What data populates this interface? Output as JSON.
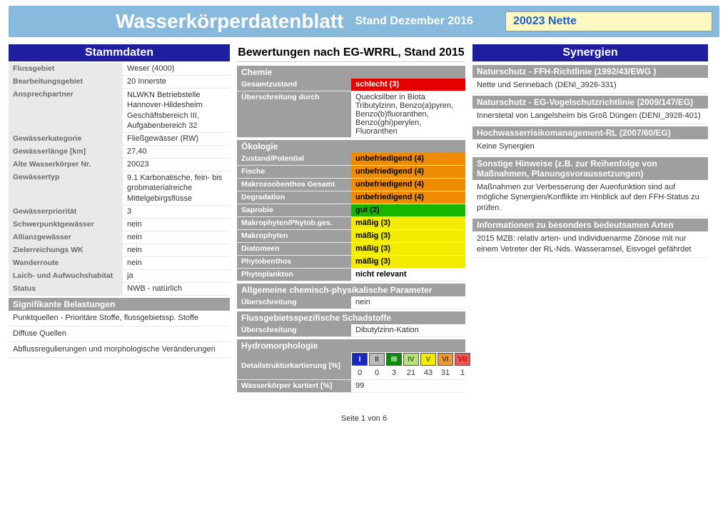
{
  "banner": {
    "bg": "#87badd",
    "title": "Wasserkörperdatenblatt",
    "subtitle": "Stand Dezember 2016",
    "code": "20023 Nette",
    "code_bg": "#fdf7c2",
    "code_color": "#1e60c9"
  },
  "col1": {
    "heading": "Stammdaten",
    "rows": [
      {
        "k": "Flussgebiet",
        "v": "Weser (4000)"
      },
      {
        "k": "Bearbeitungsgebiet",
        "v": "20 Innerste"
      },
      {
        "k": "Ansprechpartner",
        "v": "NLWKN Betriebstelle Hannover-Hildesheim Geschäftsbereich III, Aufgabenbereich 32"
      },
      {
        "k": "Gewässerkategorie",
        "v": "Fließgewässer (RW)"
      },
      {
        "k": "Gewässerlänge [km]",
        "v": "27,40"
      },
      {
        "k": "Alte Wasserkörper Nr.",
        "v": "20023"
      },
      {
        "k": "Gewässertyp",
        "v": "9.1 Karbonatische, fein- bis grobmaterialreiche Mittelgebirgsflüsse"
      },
      {
        "k": "Gewässerpriorität",
        "v": "3"
      },
      {
        "k": "Schwerpunktgewässer",
        "v": "nein"
      },
      {
        "k": "Allianzgewässer",
        "v": "nein"
      },
      {
        "k": "Zielerreichungs WK",
        "v": "nein"
      },
      {
        "k": "Wanderroute",
        "v": "nein"
      },
      {
        "k": "Laich- und Aufwuchshabitat",
        "v": "ja"
      },
      {
        "k": "Status",
        "v": "NWB - natürlich"
      }
    ],
    "belastungen_head": "Signifikante Belastungen",
    "belastungen": [
      "Punktquellen - Prioritäre Stoffe, flussgebietssp. Stoffe",
      "Diffuse Quellen",
      "Abflussregulierungen und morphologische Veränderungen"
    ]
  },
  "col2": {
    "heading": "Bewertungen nach EG-WRRL, Stand 2015",
    "chemie_head": "Chemie",
    "gesamt": {
      "k": "Gesamtzustand",
      "v": "schlecht (3)",
      "bg": "#e60000",
      "fg": "#ffffff"
    },
    "uebers": {
      "k": "Überschreitung durch",
      "v": "Quecksilber in Biota Tributylzinn, Benzo(a)pyren, Benzo(b)fluoranthen, Benzo(ghi)perylen, Fluoranthen"
    },
    "oekologie_head": "Ökologie",
    "oek_rows": [
      {
        "k": "Zustand/Potential",
        "v": "unbefriedigend (4)",
        "bg": "#ee8b00",
        "fg": "#000"
      },
      {
        "k": "Fische",
        "v": "unbefriedigend (4)",
        "bg": "#ee8b00",
        "fg": "#000"
      },
      {
        "k": "Makrozoobenthos Gesamt",
        "v": "unbefriedigend (4)",
        "bg": "#ee8b00",
        "fg": "#000"
      },
      {
        "k": "Degradation",
        "v": "unbefriedigend (4)",
        "bg": "#ee8b00",
        "fg": "#000"
      },
      {
        "k": "Saprobie",
        "v": "gut (2)",
        "bg": "#18b500",
        "fg": "#000"
      },
      {
        "k": "Makrophyten/Phytob.ges.",
        "v": "mäßig (3)",
        "bg": "#f3ec00",
        "fg": "#000"
      },
      {
        "k": "Makrophyten",
        "v": "mäßig (3)",
        "bg": "#f3ec00",
        "fg": "#000"
      },
      {
        "k": "Diatomeen",
        "v": "mäßig (3)",
        "bg": "#f3ec00",
        "fg": "#000"
      },
      {
        "k": "Phytobenthos",
        "v": "mäßig (3)",
        "bg": "#f3ec00",
        "fg": "#000"
      },
      {
        "k": "Phytoplankton",
        "v": "nicht relevant",
        "bg": "#ffffff",
        "fg": "#000"
      }
    ],
    "acp_head": "Allgemeine chemisch-physikalische Parameter",
    "acp": {
      "k": "Überschreitung",
      "v": "nein"
    },
    "fsp_head": "Flussgebietsspezifische Schadstoffe",
    "fsp": {
      "k": "Überschreitung",
      "v": "Dibutylzinn-Kation"
    },
    "hydro_head": "Hydromorphologie",
    "dsk_label": "Detailstrukturkartierung [%]",
    "dsk_cells": [
      {
        "r": "I",
        "bg": "#1728c6",
        "fg": "#fff",
        "val": "0"
      },
      {
        "r": "II",
        "bg": "#bcbcbc",
        "fg": "#444",
        "val": "0"
      },
      {
        "r": "III",
        "bg": "#0d8b0b",
        "fg": "#fff",
        "val": "3"
      },
      {
        "r": "IV",
        "bg": "#b9e07b",
        "fg": "#3b6b1e",
        "val": "21"
      },
      {
        "r": "V",
        "bg": "#f3ec00",
        "fg": "#6b6400",
        "val": "43"
      },
      {
        "r": "VI",
        "bg": "#e79a3b",
        "fg": "#6b3b00",
        "val": "31"
      },
      {
        "r": "VII",
        "bg": "#e45a5a",
        "fg": "#dd0000",
        "val": "1"
      }
    ],
    "wk_kartiert": {
      "k": "Wasserkörper kartiert [%]",
      "v": "99"
    }
  },
  "col3": {
    "heading": "Synergien",
    "ffhrl_head": "Naturschutz - FFH-Richtlinie (1992/43/EWG )",
    "ffhrl_text": "Nette und Sennebach (DENI_3926-331)",
    "vogel_head": "Naturschutz - EG-Vogelschutzrichtlinie (2009/147/EG)",
    "vogel_text": "Innerstetal von Langelsheim bis Groß Düngen (DENI_3928-401)",
    "hw_head": "Hochwasserrisikomanagement-RL (2007/60/EG)",
    "hw_text": "Keine Synergien",
    "sonst_head": "Sonstige Hinweise (z.B. zur Reihenfolge von Maßnahmen, Planungsvoraussetzungen)",
    "sonst_text": "Maßnahmen zur Verbesserung der Auenfunktion sind auf mögliche Synergien/Konflikte im Hinblick auf den FFH-Status zu prüfen.",
    "info_head": "Informationen zu besonders bedeutsamen Arten",
    "info_text": "2015 MZB: relativ arten- und individuenarme Zönose mit nur einem Vetreter der RL-Nds. Wasseramsel, Eisvogel gefährdet"
  },
  "footer": "Seite 1 von 6"
}
